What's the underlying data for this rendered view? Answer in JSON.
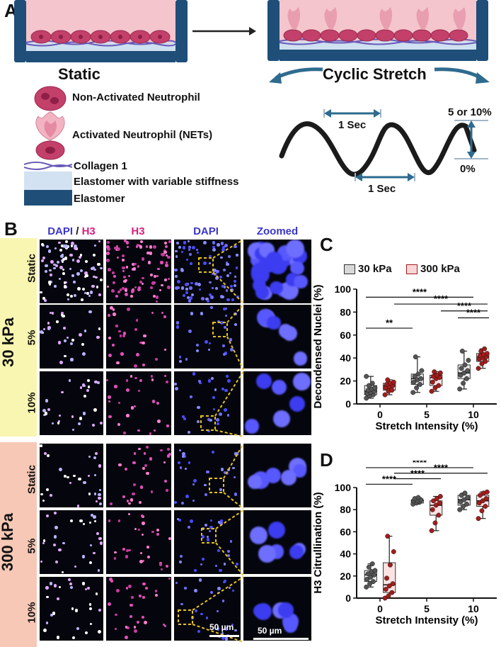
{
  "panel_a": {
    "letter": "A",
    "static_label": "Static",
    "cyclic_label": "Cyclic Stretch",
    "legend": {
      "non_activated": "Non-Activated Neutrophil",
      "activated": "Activated Neutrophil (NETs)",
      "collagen": "Collagen 1",
      "elastomer_variable": "Elastomer with variable stiffness",
      "elastomer": "Elastomer"
    },
    "wave": {
      "period_top": "1 Sec",
      "period_bottom": "1 Sec",
      "amp_top": "5 or 10%",
      "amp_bottom": "0%"
    },
    "colors": {
      "frame": "#1f4e79",
      "cell": "#c2406a",
      "medium": "#f4c5cc",
      "arrow": "#2e6b8e"
    }
  },
  "panel_b": {
    "letter": "B",
    "columns": [
      {
        "text": "DAPI",
        "color": "#3b36c9"
      },
      {
        "text": " / ",
        "color": "#111111"
      },
      {
        "text": "H3",
        "color": "#d4217f"
      }
    ],
    "col_h3": "H3",
    "col_dapi": "DAPI",
    "col_zoomed": "Zoomed",
    "group_30": "30 kPa",
    "group_300": "300 kPa",
    "rows": [
      "Static",
      "5%",
      "10%"
    ],
    "scale_left": "50 µm",
    "scale_right": "50 µm",
    "colors": {
      "group_30_bg": "#f8f6b1",
      "group_300_bg": "#f7c8b6"
    }
  },
  "panel_c": {
    "letter": "C",
    "legend": {
      "a": "30 kPa",
      "b": "300 kPa"
    },
    "chart_data": {
      "type": "box",
      "ylabel": "Decondensed Nuclei (%)",
      "xlabel": "Stretch Intensity (%)",
      "categories": [
        "0",
        "5",
        "10"
      ],
      "ylim": [
        0,
        100
      ],
      "yticks": [
        0,
        20,
        40,
        60,
        80,
        100
      ],
      "series": [
        {
          "name": "30 kPa",
          "color": "#555555",
          "boxes": [
            {
              "min": 5,
              "q1": 8,
              "median": 11,
              "q3": 16,
              "max": 24,
              "points": [
                5,
                7,
                8,
                9,
                10,
                11,
                12,
                13,
                14,
                16,
                18,
                24
              ]
            },
            {
              "min": 10,
              "q1": 17,
              "median": 22,
              "q3": 26,
              "max": 41,
              "points": [
                10,
                14,
                17,
                19,
                21,
                22,
                24,
                26,
                29,
                41
              ]
            },
            {
              "min": 13,
              "q1": 22,
              "median": 27,
              "q3": 34,
              "max": 46,
              "points": [
                13,
                18,
                22,
                25,
                27,
                29,
                31,
                34,
                38,
                46
              ]
            }
          ]
        },
        {
          "name": "300 kPa",
          "color": "#a51c1c",
          "boxes": [
            {
              "min": 8,
              "q1": 12,
              "median": 16,
              "q3": 18,
              "max": 21,
              "points": [
                8,
                11,
                12,
                14,
                15,
                16,
                17,
                18,
                19,
                21
              ]
            },
            {
              "min": 11,
              "q1": 16,
              "median": 23,
              "q3": 25,
              "max": 28,
              "points": [
                11,
                14,
                16,
                19,
                22,
                23,
                24,
                25,
                27,
                28
              ]
            },
            {
              "min": 31,
              "q1": 37,
              "median": 41,
              "q3": 44,
              "max": 48,
              "points": [
                31,
                35,
                37,
                39,
                40,
                41,
                42,
                43,
                44,
                46,
                48
              ]
            }
          ]
        }
      ],
      "significance": [
        {
          "label": "****",
          "y": 93
        },
        {
          "label": "****",
          "y": 87
        },
        {
          "label": "****",
          "y": 81
        },
        {
          "label": "****",
          "y": 75
        },
        {
          "label": "**",
          "y": 66
        }
      ]
    }
  },
  "panel_d": {
    "letter": "D",
    "chart_data": {
      "type": "box",
      "ylabel": "H3 Citrullination (%)",
      "xlabel": "Stretch Intensity (%)",
      "categories": [
        "0",
        "5",
        "10"
      ],
      "ylim": [
        0,
        100
      ],
      "yticks": [
        0,
        20,
        40,
        60,
        80,
        100
      ],
      "series": [
        {
          "name": "30 kPa",
          "color": "#555555",
          "boxes": [
            {
              "min": 10,
              "q1": 15,
              "median": 21,
              "q3": 25,
              "max": 31,
              "points": [
                10,
                13,
                15,
                17,
                19,
                21,
                22,
                24,
                25,
                28,
                31
              ]
            },
            {
              "min": 85,
              "q1": 86,
              "median": 88,
              "q3": 89,
              "max": 91,
              "points": [
                85,
                86,
                87,
                88,
                88,
                89,
                90,
                91
              ]
            },
            {
              "min": 80,
              "q1": 84,
              "median": 89,
              "q3": 93,
              "max": 95,
              "points": [
                80,
                83,
                85,
                87,
                89,
                91,
                93,
                95
              ]
            }
          ]
        },
        {
          "name": "300 kPa",
          "color": "#a51c1c",
          "boxes": [
            {
              "min": 0,
              "q1": 5,
              "median": 12,
              "q3": 32,
              "max": 56,
              "points": [
                0,
                2,
                5,
                8,
                11,
                13,
                18,
                30,
                42,
                56
              ]
            },
            {
              "min": 61,
              "q1": 75,
              "median": 84,
              "q3": 88,
              "max": 92,
              "points": [
                61,
                68,
                75,
                80,
                84,
                86,
                88,
                90,
                92
              ]
            },
            {
              "min": 72,
              "q1": 83,
              "median": 88,
              "q3": 93,
              "max": 96,
              "points": [
                72,
                79,
                83,
                86,
                88,
                90,
                93,
                95,
                96
              ]
            }
          ]
        }
      ],
      "significance": [
        {
          "label": "****",
          "y": 118
        },
        {
          "label": "****",
          "y": 113
        },
        {
          "label": "****",
          "y": 108
        },
        {
          "label": "****",
          "y": 103
        }
      ]
    }
  }
}
